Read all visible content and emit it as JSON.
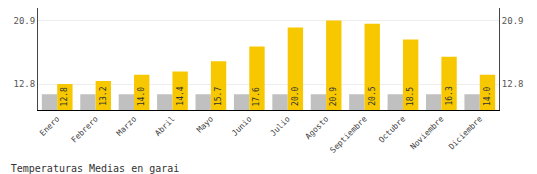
{
  "chart_data": {
    "type": "bar",
    "title": "Temperaturas Medias en garai",
    "categories": [
      "Enero",
      "Febrero",
      "Marzo",
      "Abril",
      "Mayo",
      "Junio",
      "Julio",
      "Agosto",
      "Septiembre",
      "Octubre",
      "Noviembre",
      "Diciembre"
    ],
    "series": [
      {
        "color": "#C0C0C0",
        "values": [
          11.5,
          11.5,
          11.5,
          11.5,
          11.5,
          11.5,
          11.5,
          11.5,
          11.5,
          11.5,
          11.5,
          11.5
        ]
      },
      {
        "color": "#F7C800",
        "values": [
          12.8,
          13.2,
          14.0,
          14.4,
          15.7,
          17.6,
          20.0,
          20.9,
          20.5,
          18.5,
          16.3,
          14.0
        ],
        "value_labels": [
          "12.8",
          "13.2",
          "14.0",
          "14.4",
          "15.7",
          "17.6",
          "20.0",
          "20.9",
          "20.5",
          "18.5",
          "16.3",
          "14.0"
        ],
        "data_labels": true
      }
    ],
    "ylim": [
      9.5,
      22.5
    ],
    "yticks": [
      12.8,
      20.9
    ],
    "y2lim": [
      9.5,
      22.5
    ],
    "y2ticks": [
      12.8,
      20.9
    ],
    "grid": true
  }
}
